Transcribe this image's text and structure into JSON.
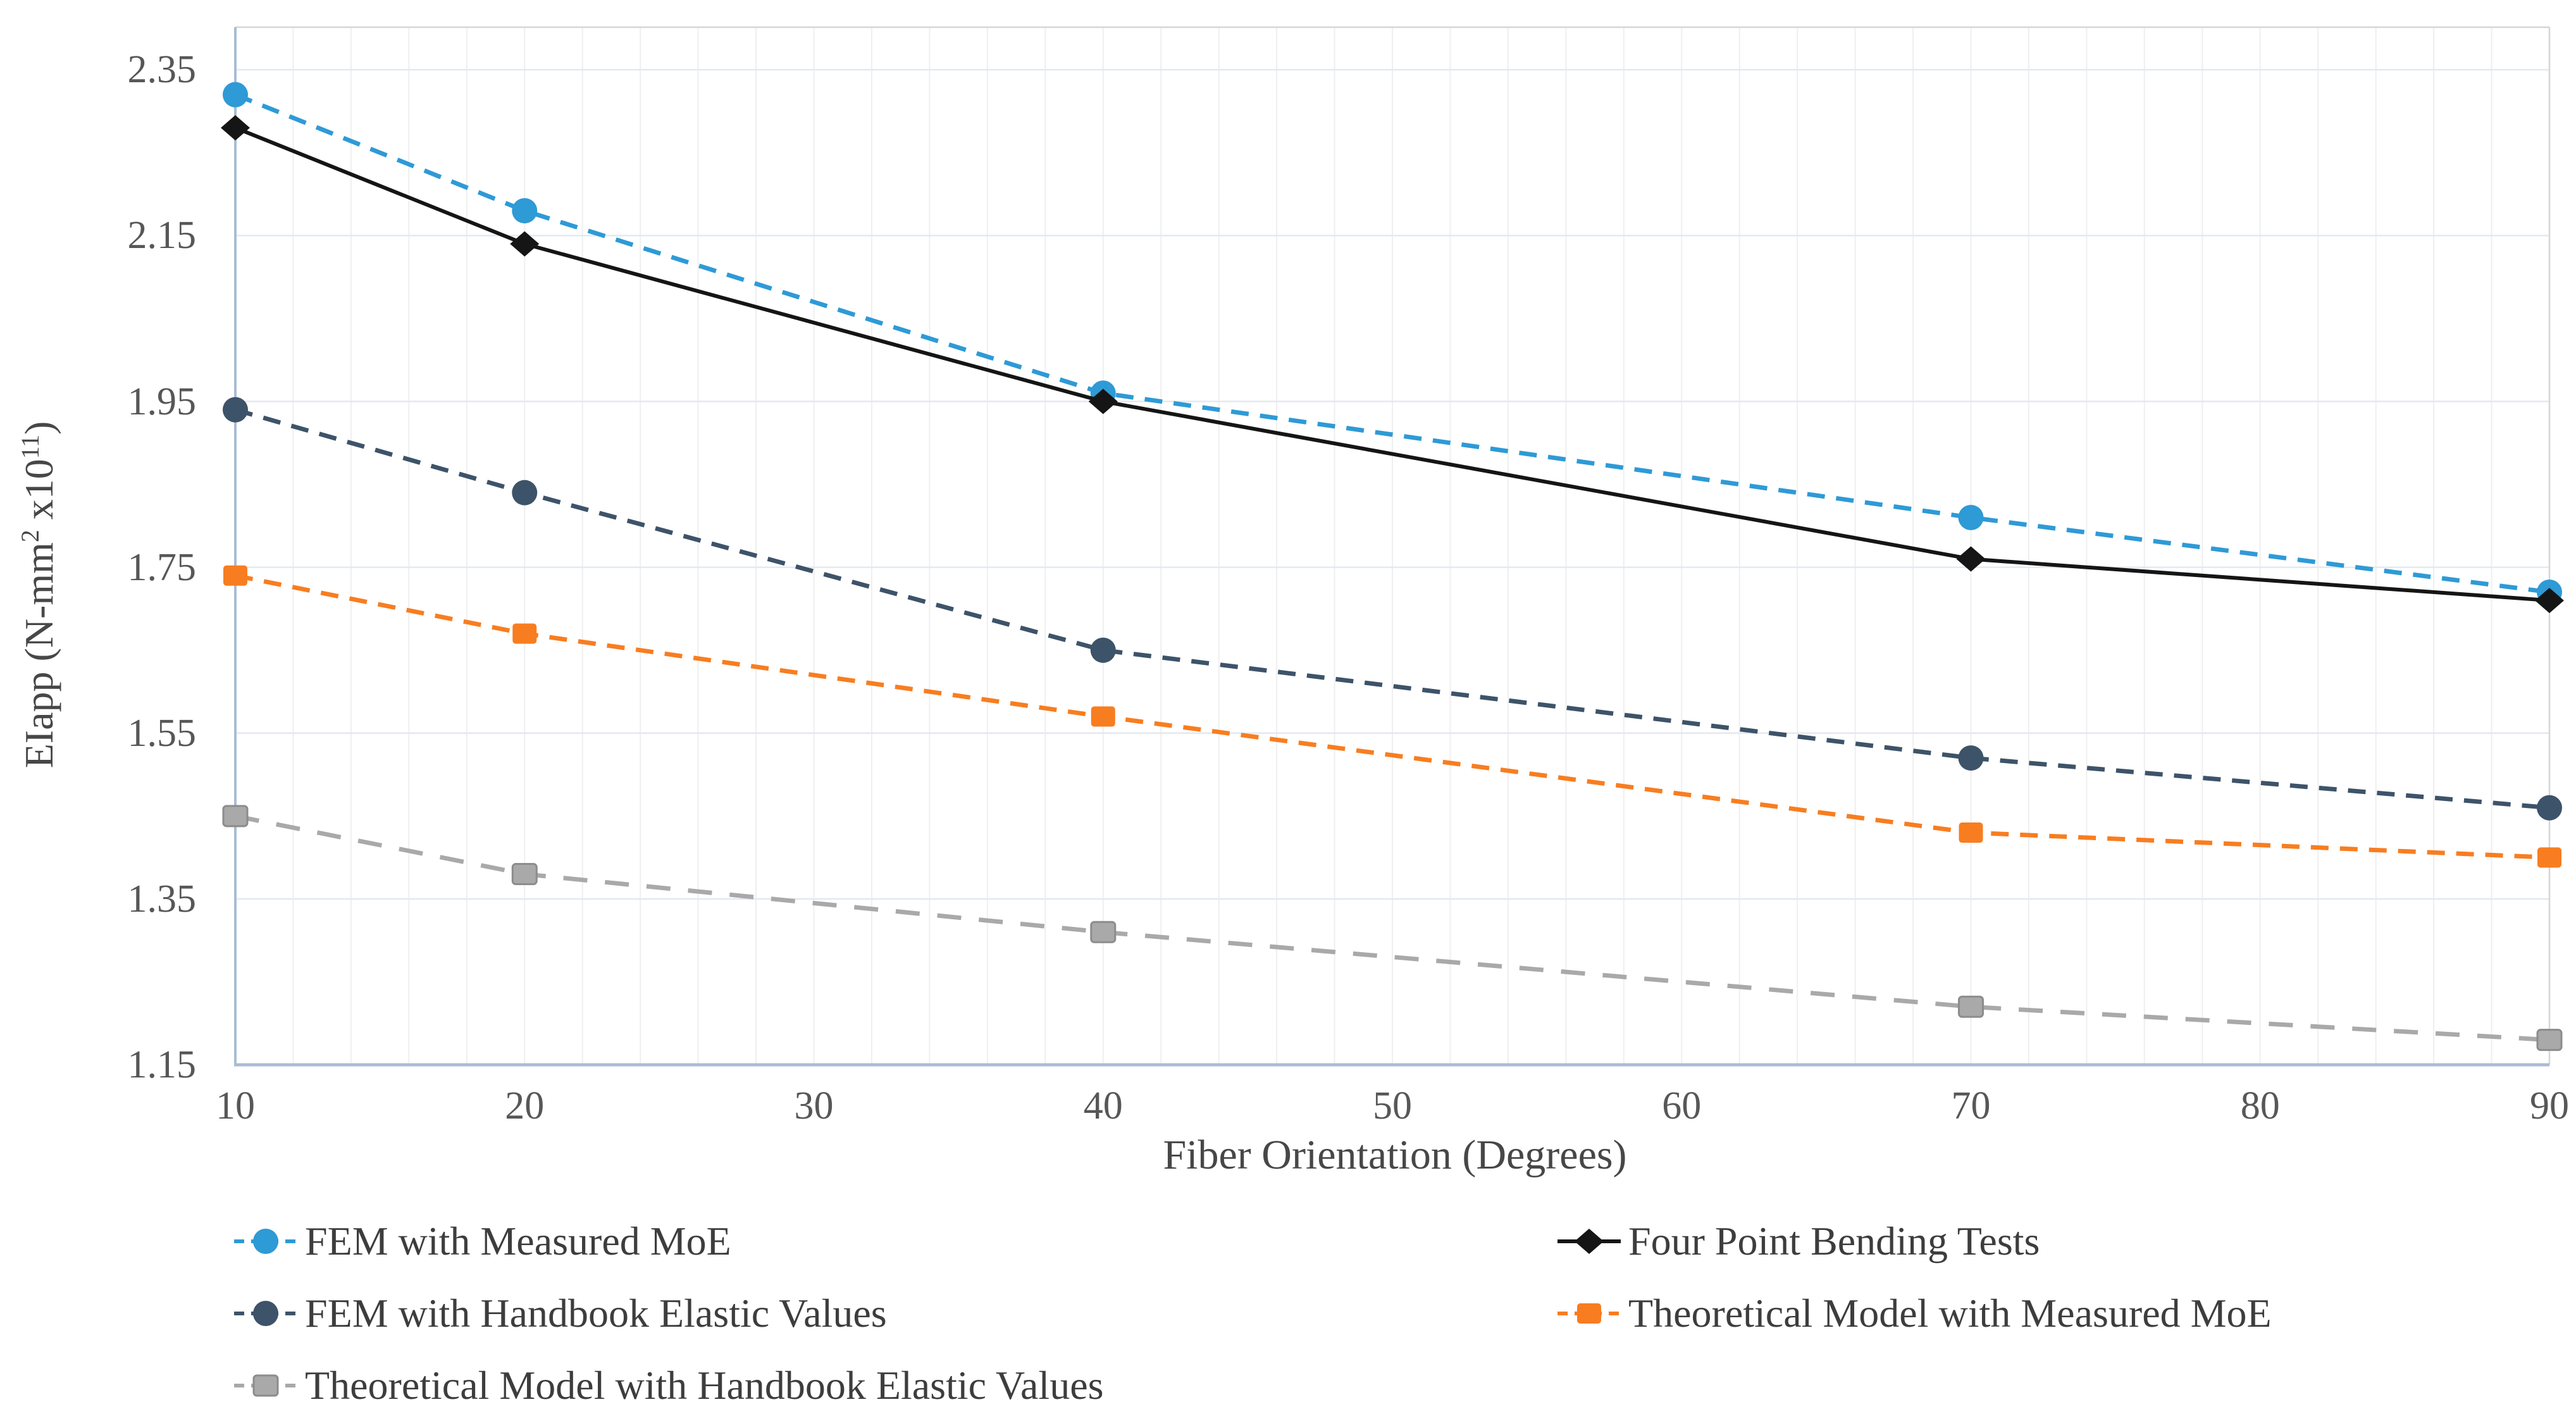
{
  "chart_data": {
    "type": "line",
    "title": "",
    "xlabel": "Fiber Orientation (Degrees)",
    "ylabel": "EIapp (N-mm² x10¹¹)",
    "ylabel_parts": [
      "EIapp (N-mm",
      {
        "sup": "2"
      },
      " x10",
      {
        "sup": "11"
      },
      ")"
    ],
    "x": [
      10,
      20,
      40,
      70,
      90
    ],
    "x_tick_labels": [
      "10",
      "20",
      "30",
      "40",
      "50",
      "60",
      "70",
      "80",
      "90"
    ],
    "y_tick_labels": [
      "2.35",
      "2.15",
      "1.95",
      "1.75",
      "1.55",
      "1.35",
      "1.15"
    ],
    "xlim": [
      10,
      90
    ],
    "ylim": [
      1.15,
      2.4
    ],
    "grid": {
      "horizontal_major": true,
      "vertical_minor_step_degrees": 2
    },
    "legend_position": "bottom-two-columns",
    "series": [
      {
        "name": "FEM with Measured MoE",
        "color": "#2E9AD6",
        "line": "dashed",
        "marker": "circle",
        "values": [
          2.32,
          2.18,
          1.96,
          1.81,
          1.72
        ]
      },
      {
        "name": "Four Point Bending Tests",
        "color": "#151515",
        "line": "solid",
        "marker": "diamond",
        "values": [
          2.28,
          2.14,
          1.95,
          1.76,
          1.71
        ]
      },
      {
        "name": "FEM with Handbook Elastic Values",
        "color": "#3D5369",
        "line": "dashed",
        "marker": "circle",
        "values": [
          1.94,
          1.84,
          1.65,
          1.52,
          1.46
        ]
      },
      {
        "name": "Theoretical Model with Measured MoE",
        "color": "#F87D20",
        "line": "dashed",
        "marker": "square",
        "values": [
          1.74,
          1.67,
          1.57,
          1.43,
          1.4
        ]
      },
      {
        "name": "Theoretical Model with Handbook Elastic Values",
        "color": "#A9A9A9",
        "line": "dashed",
        "marker": "square",
        "marker_border": "#8C8C8C",
        "values": [
          1.45,
          1.38,
          1.31,
          1.22,
          1.18
        ]
      }
    ]
  },
  "legend": {
    "left_column_series": [
      0,
      2,
      4
    ],
    "right_column_series": [
      1,
      3
    ]
  }
}
